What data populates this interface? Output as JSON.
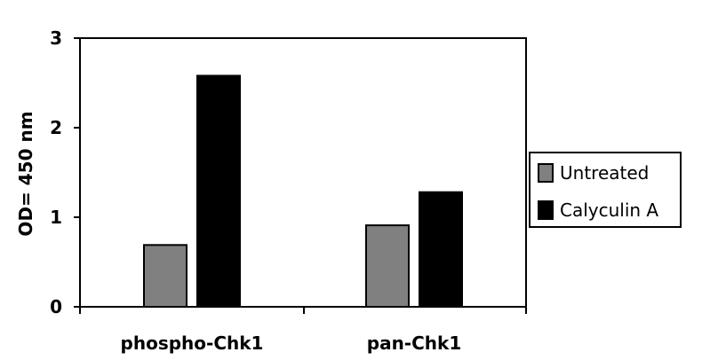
{
  "chart_data": {
    "type": "bar",
    "title": "",
    "xlabel": "",
    "ylabel": "OD= 450 nm",
    "ylim": [
      0,
      3
    ],
    "yticks": [
      0,
      1,
      2,
      3
    ],
    "grid": false,
    "categories": [
      "phospho-Chk1",
      "pan-Chk1"
    ],
    "series": [
      {
        "name": "Untreated",
        "values": [
          0.69,
          0.91
        ],
        "color": "#808080"
      },
      {
        "name": "Calyculin A",
        "values": [
          2.58,
          1.28
        ],
        "color": "#000000"
      }
    ],
    "legend_position": "right"
  }
}
